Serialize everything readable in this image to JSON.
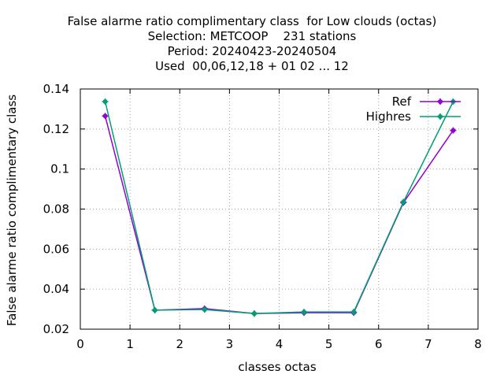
{
  "chart_data": {
    "type": "line",
    "title_lines": [
      "False alarme ratio complimentary class  for Low clouds (octas)",
      "Selection: METCOOP    231 stations",
      "Period: 20240423-20240504",
      "Used  00,06,12,18 + 01 02 ... 12"
    ],
    "xlabel": "classes octas",
    "ylabel": "False alarme ratio complimentary class",
    "xlim": [
      0,
      8
    ],
    "ylim": [
      0.02,
      0.14
    ],
    "xticks": [
      0,
      1,
      2,
      3,
      4,
      5,
      6,
      7,
      8
    ],
    "xtick_labels": [
      "0",
      "1",
      "2",
      "3",
      "4",
      "5",
      "6",
      "7",
      "8"
    ],
    "yticks": [
      0.02,
      0.04,
      0.06,
      0.08,
      0.1,
      0.12,
      0.14
    ],
    "ytick_labels": [
      "0.02",
      "0.04",
      "0.06",
      "0.08",
      "0.1",
      "0.12",
      "0.14"
    ],
    "grid": true,
    "legend_position": "top-right",
    "series": [
      {
        "name": "Ref",
        "color": "#9400d3",
        "x": [
          0.5,
          1.5,
          2.5,
          3.5,
          4.5,
          5.5,
          6.5,
          7.5
        ],
        "values": [
          0.1265,
          0.0295,
          0.0303,
          0.0278,
          0.0282,
          0.0282,
          0.0832,
          0.1193
        ]
      },
      {
        "name": "Highres",
        "color": "#009e73",
        "x": [
          0.5,
          1.5,
          2.5,
          3.5,
          4.5,
          5.5,
          6.5,
          7.5
        ],
        "values": [
          0.1337,
          0.0295,
          0.0298,
          0.0278,
          0.0286,
          0.0286,
          0.0836,
          0.1337
        ]
      }
    ]
  }
}
